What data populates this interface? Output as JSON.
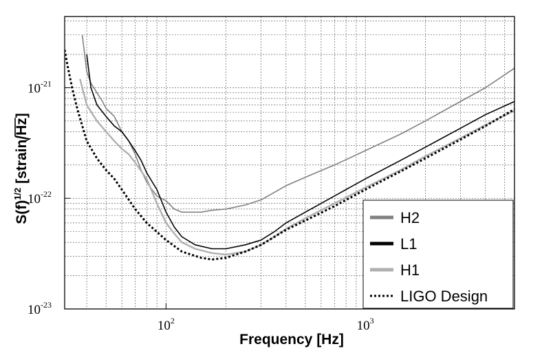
{
  "chart_data": {
    "type": "line",
    "title": "",
    "xlabel": "Frequency [Hz]",
    "ylabel_main": "S(f)",
    "ylabel_exp": "1/2",
    "ylabel_unit_prefix": "[strain/",
    "ylabel_unit_root": "Hz",
    "ylabel_unit_suffix": "]",
    "x_scale": "log",
    "y_scale": "log",
    "xlim": [
      31,
      5600
    ],
    "ylim": [
      1e-23,
      4.4e-21
    ],
    "grid": true,
    "legend_position": "bottom-right",
    "x_ticks": [
      {
        "value": 100,
        "base": "10",
        "exp": "2"
      },
      {
        "value": 1000,
        "base": "10",
        "exp": "3"
      }
    ],
    "y_ticks": [
      {
        "value": 1e-23,
        "base": "10",
        "exp": "-23"
      },
      {
        "value": 1e-22,
        "base": "10",
        "exp": "-22"
      },
      {
        "value": 1e-21,
        "base": "10",
        "exp": "-21"
      }
    ],
    "series": [
      {
        "name": "H2",
        "color": "#808080",
        "style": "solid",
        "x": [
          38,
          40,
          42,
          45,
          48,
          50,
          55,
          60,
          65,
          70,
          75,
          80,
          85,
          90,
          100,
          110,
          120,
          130,
          150,
          170,
          200,
          250,
          300,
          400,
          500,
          700,
          1000,
          1500,
          2000,
          3000,
          4000,
          5600
        ],
        "y": [
          3e-21,
          1.4e-21,
          1.1e-21,
          9e-22,
          7.5e-22,
          6.5e-22,
          5.5e-22,
          4e-22,
          3.3e-22,
          2.5e-22,
          1.8e-22,
          1.4e-22,
          1.2e-22,
          1.05e-22,
          9.5e-23,
          8e-23,
          7.5e-23,
          7.5e-23,
          7.5e-23,
          7.8e-23,
          8e-23,
          8.7e-23,
          9.7e-23,
          1.3e-22,
          1.55e-22,
          2e-22,
          2.7e-22,
          3.8e-22,
          5e-22,
          7.5e-22,
          1e-21,
          1.5e-21
        ]
      },
      {
        "name": "L1",
        "color": "#000000",
        "style": "solid",
        "x": [
          40,
          42,
          45,
          50,
          55,
          60,
          65,
          70,
          75,
          80,
          90,
          100,
          110,
          120,
          140,
          170,
          200,
          250,
          300,
          350,
          400,
          500,
          700,
          1000,
          1500,
          2000,
          3000,
          4000,
          5600
        ],
        "y": [
          2e-21,
          1e-21,
          7e-22,
          5.5e-22,
          4.5e-22,
          4e-22,
          3.3e-22,
          2.7e-22,
          2.2e-22,
          1.7e-22,
          1.2e-22,
          7.5e-23,
          5.5e-23,
          4.5e-23,
          3.8e-23,
          3.5e-23,
          3.5e-23,
          3.8e-23,
          4.2e-23,
          5e-23,
          6e-23,
          7.5e-23,
          1.05e-22,
          1.5e-22,
          2.2e-22,
          2.9e-22,
          4.3e-22,
          5.7e-22,
          7.5e-22
        ]
      },
      {
        "name": "H1",
        "color": "#b0b0b0",
        "style": "solid",
        "x": [
          37,
          40,
          45,
          50,
          55,
          60,
          65,
          70,
          80,
          90,
          100,
          110,
          120,
          140,
          170,
          200,
          250,
          300,
          350,
          400,
          500,
          700,
          1000,
          1500,
          2000,
          3000,
          4000,
          5600
        ],
        "y": [
          1.2e-21,
          7e-22,
          5e-22,
          4e-22,
          3.3e-22,
          2.8e-22,
          2.5e-22,
          2.1e-22,
          1.5e-22,
          9e-23,
          6e-23,
          4.8e-23,
          4e-23,
          3.5e-23,
          3.2e-23,
          3.1e-23,
          3.3e-23,
          3.8e-23,
          4.5e-23,
          5.3e-23,
          6.6e-23,
          9e-23,
          1.25e-22,
          1.8e-22,
          2.4e-22,
          3.5e-22,
          4.6e-22,
          6.2e-22
        ]
      },
      {
        "name": "LIGO Design",
        "color": "#000000",
        "style": "dotted",
        "x": [
          31,
          32,
          34,
          36,
          40,
          45,
          50,
          55,
          60,
          70,
          80,
          100,
          120,
          150,
          170,
          200,
          250,
          300,
          400,
          500,
          700,
          1000,
          1500,
          2000,
          3000,
          4000,
          5600
        ],
        "y": [
          2.2e-21,
          1.6e-21,
          9.5e-22,
          6.3e-22,
          3.3e-22,
          2.3e-22,
          1.8e-22,
          1.5e-22,
          1.2e-22,
          8e-23,
          6e-23,
          4.2e-23,
          3.3e-23,
          2.9e-23,
          2.8e-23,
          2.9e-23,
          3.3e-23,
          3.8e-23,
          5.2e-23,
          6.3e-23,
          8.5e-23,
          1.2e-22,
          1.75e-22,
          2.3e-22,
          3.4e-22,
          4.5e-22,
          6.4e-22
        ]
      }
    ]
  }
}
